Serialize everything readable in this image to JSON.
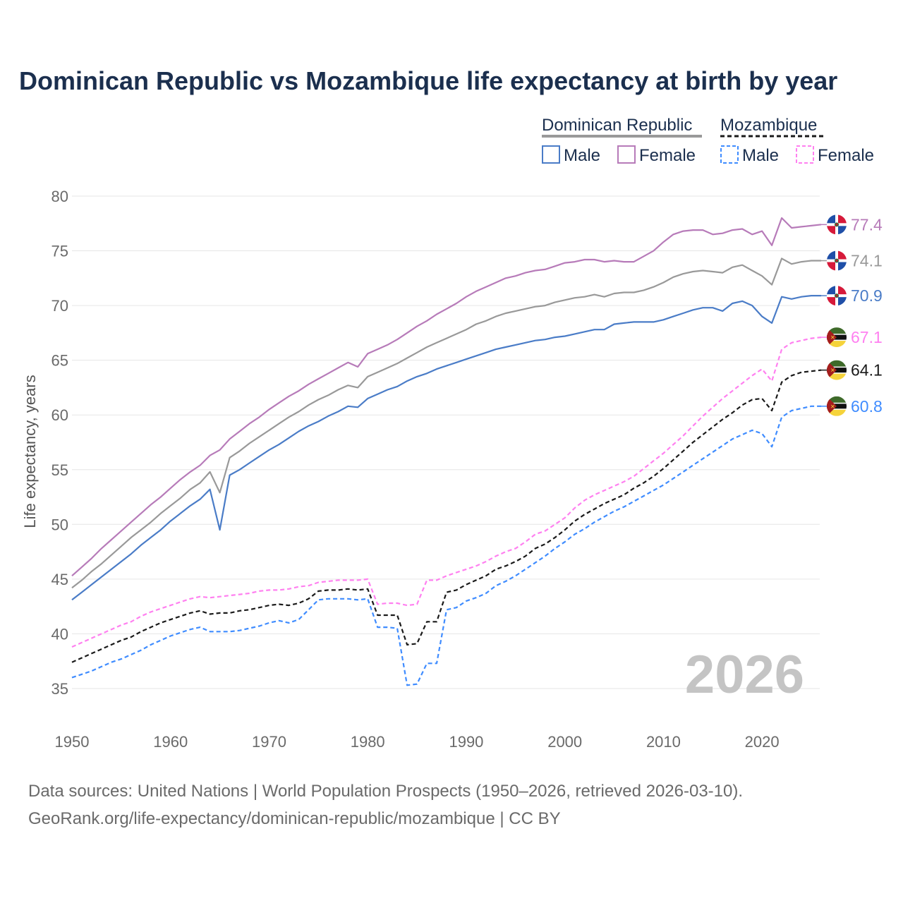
{
  "chart_data": {
    "type": "line",
    "title": "Dominican Republic vs Mozambique life expectancy at birth by year",
    "xlabel": "",
    "ylabel": "Life expectancy, years",
    "xlim": [
      1950,
      2026
    ],
    "ylim": [
      32.5,
      80
    ],
    "grid": true,
    "x_ticks": [
      1950,
      1960,
      1970,
      1980,
      1990,
      2000,
      2010,
      2020
    ],
    "y_ticks": [
      35,
      40,
      45,
      50,
      55,
      60,
      65,
      70,
      75,
      80
    ],
    "watermark_year": "2026",
    "legend_placement": "top-right",
    "legend": {
      "groups": [
        {
          "country": "Dominican Republic",
          "items": [
            "Male",
            "Female"
          ]
        },
        {
          "country": "Mozambique",
          "items": [
            "Male",
            "Female"
          ]
        }
      ]
    },
    "x_start": 1950,
    "series": [
      {
        "name": "Dominican Republic Female",
        "color": "#b77bb9",
        "dashed": false,
        "flag": "dominican-republic",
        "end_label": "77.4",
        "values": [
          45.3,
          46.1,
          46.9,
          47.8,
          48.6,
          49.4,
          50.2,
          51.0,
          51.8,
          52.5,
          53.3,
          54.1,
          54.8,
          55.4,
          56.3,
          56.8,
          57.8,
          58.5,
          59.2,
          59.8,
          60.5,
          61.1,
          61.7,
          62.2,
          62.8,
          63.3,
          63.8,
          64.3,
          64.8,
          64.4,
          65.6,
          66.0,
          66.4,
          66.9,
          67.5,
          68.1,
          68.6,
          69.2,
          69.7,
          70.2,
          70.8,
          71.3,
          71.7,
          72.1,
          72.5,
          72.7,
          73.0,
          73.2,
          73.3,
          73.6,
          73.9,
          74.0,
          74.2,
          74.2,
          74.0,
          74.1,
          74.0,
          74.0,
          74.5,
          75.0,
          75.8,
          76.5,
          76.8,
          76.9,
          76.9,
          76.5,
          76.6,
          76.9,
          77.0,
          76.5,
          76.8,
          75.5,
          78.0,
          77.1,
          77.2,
          77.3,
          77.4
        ]
      },
      {
        "name": "Dominican Republic",
        "color": "#999999",
        "dashed": false,
        "flag": "dominican-republic",
        "end_label": "74.1",
        "values": [
          44.2,
          44.9,
          45.7,
          46.4,
          47.2,
          48.0,
          48.8,
          49.5,
          50.2,
          51.0,
          51.7,
          52.4,
          53.2,
          53.8,
          54.8,
          52.9,
          56.1,
          56.7,
          57.4,
          58.0,
          58.6,
          59.2,
          59.8,
          60.3,
          60.9,
          61.4,
          61.8,
          62.3,
          62.7,
          62.5,
          63.5,
          63.9,
          64.3,
          64.7,
          65.2,
          65.7,
          66.2,
          66.6,
          67.0,
          67.4,
          67.8,
          68.3,
          68.6,
          69.0,
          69.3,
          69.5,
          69.7,
          69.9,
          70.0,
          70.3,
          70.5,
          70.7,
          70.8,
          71.0,
          70.8,
          71.1,
          71.2,
          71.2,
          71.4,
          71.7,
          72.1,
          72.6,
          72.9,
          73.1,
          73.2,
          73.1,
          73.0,
          73.5,
          73.7,
          73.2,
          72.7,
          71.9,
          74.3,
          73.8,
          74.0,
          74.1,
          74.1
        ]
      },
      {
        "name": "Dominican Republic Male",
        "color": "#4a7cc7",
        "dashed": false,
        "flag": "dominican-republic",
        "end_label": "70.9",
        "values": [
          43.1,
          43.8,
          44.5,
          45.2,
          45.9,
          46.6,
          47.3,
          48.1,
          48.8,
          49.5,
          50.3,
          51.0,
          51.7,
          52.3,
          53.2,
          49.5,
          54.5,
          55.0,
          55.6,
          56.2,
          56.8,
          57.3,
          57.9,
          58.5,
          59.0,
          59.4,
          59.9,
          60.3,
          60.8,
          60.7,
          61.5,
          61.9,
          62.3,
          62.6,
          63.1,
          63.5,
          63.8,
          64.2,
          64.5,
          64.8,
          65.1,
          65.4,
          65.7,
          66.0,
          66.2,
          66.4,
          66.6,
          66.8,
          66.9,
          67.1,
          67.2,
          67.4,
          67.6,
          67.8,
          67.8,
          68.3,
          68.4,
          68.5,
          68.5,
          68.5,
          68.7,
          69.0,
          69.3,
          69.6,
          69.8,
          69.8,
          69.5,
          70.2,
          70.4,
          70.0,
          69.0,
          68.4,
          70.8,
          70.6,
          70.8,
          70.9,
          70.9
        ]
      },
      {
        "name": "Mozambique Female",
        "color": "#ff80f0",
        "dashed": true,
        "flag": "mozambique",
        "end_label": "67.1",
        "values": [
          38.8,
          39.2,
          39.6,
          40.0,
          40.4,
          40.8,
          41.1,
          41.6,
          42.0,
          42.3,
          42.6,
          42.9,
          43.2,
          43.4,
          43.3,
          43.4,
          43.5,
          43.6,
          43.7,
          43.9,
          44.0,
          44.0,
          44.1,
          44.3,
          44.4,
          44.7,
          44.8,
          44.9,
          44.9,
          44.9,
          45.0,
          42.7,
          42.8,
          42.8,
          42.6,
          42.7,
          44.9,
          44.9,
          45.3,
          45.6,
          45.9,
          46.2,
          46.6,
          47.1,
          47.5,
          47.8,
          48.4,
          49.1,
          49.4,
          50.0,
          50.6,
          51.5,
          52.2,
          52.7,
          53.1,
          53.5,
          53.9,
          54.4,
          55.1,
          55.8,
          56.5,
          57.3,
          58.1,
          59.0,
          59.9,
          60.7,
          61.5,
          62.2,
          62.9,
          63.6,
          64.2,
          63.1,
          66.0,
          66.6,
          66.8,
          67.0,
          67.1
        ]
      },
      {
        "name": "Mozambique",
        "color": "#1a1a1a",
        "dashed": true,
        "flag": "mozambique",
        "end_label": "64.1",
        "values": [
          37.4,
          37.8,
          38.2,
          38.6,
          39.0,
          39.4,
          39.7,
          40.2,
          40.6,
          41.0,
          41.3,
          41.6,
          41.9,
          42.1,
          41.8,
          41.9,
          41.9,
          42.1,
          42.2,
          42.4,
          42.6,
          42.7,
          42.6,
          42.8,
          43.2,
          43.9,
          44.0,
          44.0,
          44.1,
          44.0,
          44.1,
          41.7,
          41.7,
          41.7,
          39.0,
          39.1,
          41.1,
          41.1,
          43.8,
          44.0,
          44.5,
          44.9,
          45.3,
          45.9,
          46.2,
          46.6,
          47.1,
          47.8,
          48.2,
          48.8,
          49.5,
          50.3,
          50.9,
          51.4,
          51.9,
          52.3,
          52.7,
          53.3,
          53.8,
          54.4,
          55.1,
          55.9,
          56.7,
          57.5,
          58.2,
          58.9,
          59.6,
          60.2,
          60.9,
          61.4,
          61.5,
          60.4,
          63.0,
          63.6,
          63.9,
          64.0,
          64.1
        ]
      },
      {
        "name": "Mozambique Male",
        "color": "#3f8cff",
        "dashed": true,
        "flag": "mozambique",
        "end_label": "60.8",
        "values": [
          36.0,
          36.3,
          36.6,
          37.0,
          37.4,
          37.7,
          38.1,
          38.5,
          39.0,
          39.4,
          39.8,
          40.1,
          40.4,
          40.6,
          40.2,
          40.2,
          40.2,
          40.3,
          40.5,
          40.7,
          41.0,
          41.2,
          41.0,
          41.3,
          42.2,
          43.1,
          43.2,
          43.2,
          43.2,
          43.1,
          43.2,
          40.6,
          40.6,
          40.5,
          35.3,
          35.4,
          37.3,
          37.3,
          42.2,
          42.4,
          43.0,
          43.3,
          43.7,
          44.4,
          44.8,
          45.3,
          45.9,
          46.5,
          47.1,
          47.8,
          48.4,
          49.1,
          49.6,
          50.2,
          50.7,
          51.2,
          51.6,
          52.1,
          52.6,
          53.1,
          53.6,
          54.2,
          54.8,
          55.4,
          56.0,
          56.6,
          57.2,
          57.8,
          58.2,
          58.6,
          58.3,
          57.1,
          59.8,
          60.4,
          60.6,
          60.8,
          60.8
        ]
      }
    ]
  },
  "footer": {
    "line1": "Data sources: United Nations | World Population Prospects (1950–2026, retrieved 2026-03-10).",
    "line2": "GeoRank.org/life-expectancy/dominican-republic/mozambique | CC BY"
  }
}
